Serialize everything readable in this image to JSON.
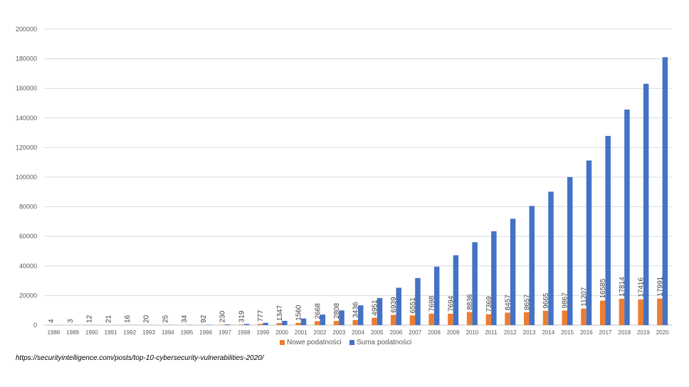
{
  "chart_data": {
    "type": "bar",
    "title": "",
    "xlabel": "",
    "ylabel": "",
    "ylim": [
      0,
      200000
    ],
    "yticks": [
      0,
      20000,
      40000,
      60000,
      80000,
      100000,
      120000,
      140000,
      160000,
      180000,
      200000
    ],
    "grid": true,
    "legend_position": "bottom",
    "categories": [
      "1988",
      "1989",
      "1990",
      "1991",
      "1992",
      "1993",
      "1994",
      "1995",
      "1996",
      "1997",
      "1998",
      "1999",
      "2000",
      "2001",
      "2002",
      "2003",
      "2004",
      "2005",
      "2006",
      "2007",
      "2008",
      "2009",
      "2010",
      "2011",
      "2012",
      "2013",
      "2014",
      "2015",
      "2016",
      "2017",
      "2018",
      "2019",
      "2020"
    ],
    "series": [
      {
        "name": "Nowe podatności",
        "color": "#ED7D31",
        "values": [
          4,
          3,
          12,
          21,
          16,
          20,
          25,
          34,
          92,
          230,
          319,
          777,
          1347,
          1560,
          2668,
          2808,
          3436,
          4951,
          6939,
          6551,
          7698,
          7694,
          8836,
          7369,
          8457,
          8657,
          9665,
          9867,
          11207,
          16585,
          17814,
          17416,
          17991
        ],
        "data_labels": [
          "4",
          "3",
          "12",
          "21",
          "16",
          "20",
          "25",
          "34",
          "92",
          "230",
          "319",
          "777",
          "1347",
          "1560",
          "2668",
          "2808",
          "3436",
          "4951",
          "6939",
          "6551",
          "7698",
          "7694",
          "8836",
          "7369",
          "8457",
          "8657",
          "9665",
          "9867",
          "11207",
          "16585",
          "17814",
          "17416",
          "17991"
        ]
      },
      {
        "name": "Suma podatności",
        "color": "#4472C4",
        "values": [
          4,
          7,
          19,
          40,
          56,
          76,
          101,
          135,
          227,
          457,
          776,
          1553,
          2900,
          4460,
          7128,
          9936,
          13372,
          18323,
          25262,
          31813,
          39511,
          47205,
          56041,
          63410,
          71867,
          80524,
          90189,
          100056,
          111263,
          127848,
          145662,
          163078,
          181069
        ]
      }
    ]
  },
  "source_text": "https://securityintelligence.com/posts/top-10-cybersecurity-vulnerabilities-2020/"
}
